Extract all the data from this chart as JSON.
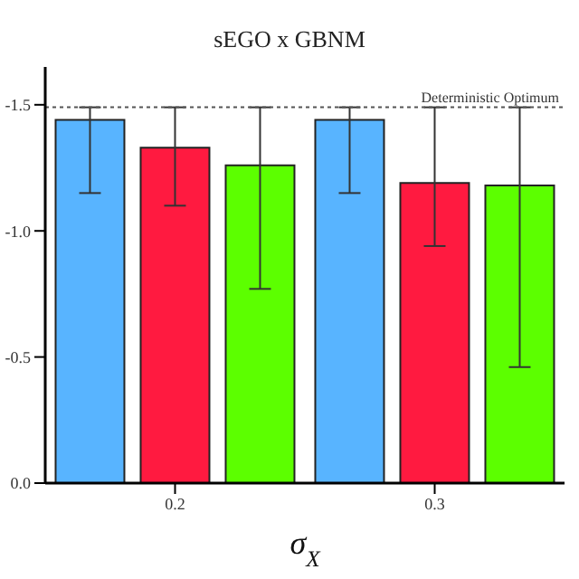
{
  "chart_data": {
    "type": "bar",
    "title": "sEGO x GBNM",
    "xlabel": "σ$_{X}$",
    "categories": [
      "0.2",
      "0.3"
    ],
    "series": [
      {
        "color": "#58b4ff",
        "values": [
          -1.44,
          -1.44
        ],
        "errors": [
          [
            -1.49,
            -1.15
          ],
          [
            -1.49,
            -1.15
          ]
        ]
      },
      {
        "color": "#ff1a40",
        "values": [
          -1.33,
          -1.19
        ],
        "errors": [
          [
            -1.49,
            -1.1
          ],
          [
            -1.49,
            -0.94
          ]
        ]
      },
      {
        "color": "#5cff00",
        "values": [
          -1.26,
          -1.18
        ],
        "errors": [
          [
            -1.49,
            -0.77
          ],
          [
            -1.49,
            -0.46
          ]
        ]
      }
    ],
    "ylim": [
      0,
      -1.65
    ],
    "yticks": [
      {
        "value": 0,
        "label": "0.0"
      },
      {
        "value": -0.5,
        "label": "-0.5"
      },
      {
        "value": -1,
        "label": "-1.0"
      },
      {
        "value": -1.5,
        "label": "-1.5"
      }
    ],
    "ref_lines": [
      {
        "axis": "y",
        "value": -1.49,
        "label": "Deterministic Optimum",
        "line_style": "dotted",
        "color": "#555555"
      }
    ],
    "grid": false
  }
}
